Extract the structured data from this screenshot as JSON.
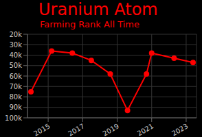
{
  "chart_data": {
    "type": "line",
    "title": "Uranium Atom",
    "subtitle": "Farming Rank All Time",
    "x": [
      2014.0,
      2015.2,
      2016.4,
      2017.5,
      2018.6,
      2019.6,
      2020.7,
      2021.0,
      2022.3,
      2023.4
    ],
    "values": [
      75000,
      36000,
      38000,
      45000,
      58000,
      93000,
      58000,
      38000,
      43000,
      47000
    ],
    "color": "#ff0000",
    "marker": "circle",
    "xlim": [
      2013.8,
      2023.6
    ],
    "xticks": [
      2015,
      2017,
      2019,
      2021,
      2023
    ],
    "ylim": [
      20000,
      100000
    ],
    "yticks": [
      {
        "value": 20000,
        "label": "20k"
      },
      {
        "value": 30000,
        "label": "30k"
      },
      {
        "value": 40000,
        "label": "40k"
      },
      {
        "value": 50000,
        "label": "50k"
      },
      {
        "value": 60000,
        "label": "60k"
      },
      {
        "value": 70000,
        "label": "70k"
      },
      {
        "value": 80000,
        "label": "80k"
      },
      {
        "value": 90000,
        "label": "90k"
      },
      {
        "value": 100000,
        "label": "100k"
      }
    ],
    "grid": true
  }
}
